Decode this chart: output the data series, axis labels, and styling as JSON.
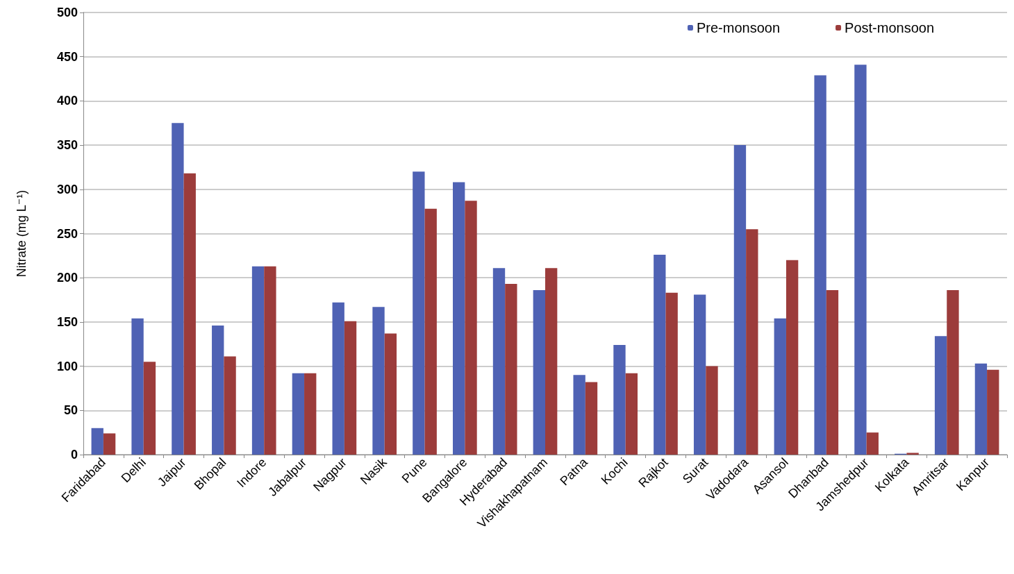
{
  "chart_data": {
    "type": "bar",
    "ylabel": "Nitrate (mg L⁻¹)",
    "categories": [
      "Faridabad",
      "Delhi",
      "Jaipur",
      "Bhopal",
      "Indore",
      "Jabalpur",
      "Nagpur",
      "Nasik",
      "Pune",
      "Bangalore",
      "Hyderabad",
      "Vishakhapatnam",
      "Patna",
      "Kochi",
      "Rajkot",
      "Surat",
      "Vadodara",
      "Asansol",
      "Dhanbad",
      "Jamshedpur",
      "Kolkata",
      "Amritsar",
      "Kanpur"
    ],
    "series": [
      {
        "name": "Pre-monsoon",
        "color": "#4f62b4",
        "values": [
          30,
          154,
          375,
          146,
          213,
          92,
          172,
          167,
          320,
          308,
          211,
          186,
          90,
          124,
          226,
          181,
          350,
          154,
          429,
          441,
          1,
          134,
          103
        ]
      },
      {
        "name": "Post-monsoon",
        "color": "#9c3c3b",
        "values": [
          24,
          105,
          318,
          111,
          213,
          92,
          151,
          137,
          278,
          287,
          193,
          211,
          82,
          92,
          183,
          100,
          255,
          220,
          186,
          25,
          2,
          186,
          96
        ]
      }
    ],
    "ylim": [
      0,
      500
    ],
    "yticks": [
      0,
      50,
      100,
      150,
      200,
      250,
      300,
      350,
      400,
      450,
      500
    ],
    "grid": "y",
    "legend": "top right"
  }
}
